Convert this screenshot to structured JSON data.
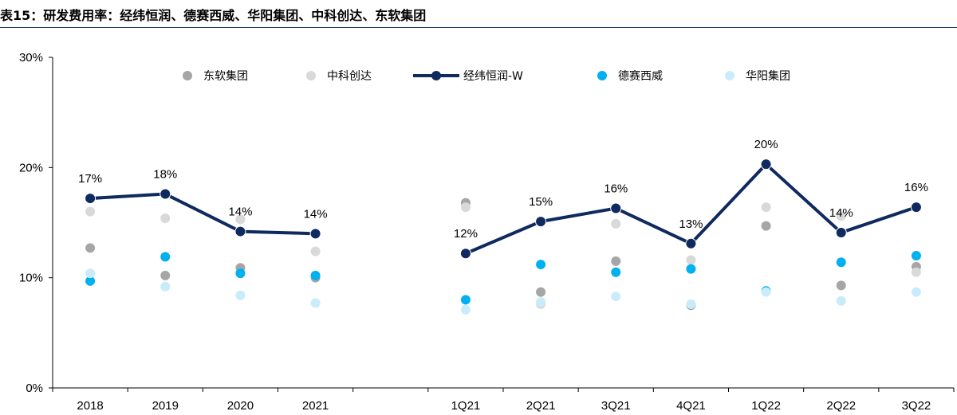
{
  "chart_data": {
    "type": "line",
    "title": "表15：研发费用率：经纬恒润、德赛西威、华阳集团、中科创达、东软集团",
    "categories": [
      "2018",
      "2019",
      "2020",
      "2021",
      "",
      "1Q21",
      "2Q21",
      "3Q21",
      "4Q21",
      "1Q22",
      "2Q22",
      "3Q22"
    ],
    "ylim": [
      0,
      30
    ],
    "yticks": [
      0,
      10,
      20,
      30
    ],
    "ytick_labels": [
      "0%",
      "10%",
      "20%",
      "30%"
    ],
    "grid": false,
    "legend_position": "top",
    "series": [
      {
        "name": "东软集团",
        "kind": "scatter",
        "color": "#a6a6a6",
        "values": [
          12.7,
          10.2,
          10.9,
          10.0,
          null,
          16.8,
          8.7,
          11.5,
          7.5,
          14.7,
          9.3,
          11.0
        ]
      },
      {
        "name": "中科创达",
        "kind": "scatter",
        "color": "#d9d9d9",
        "values": [
          16.0,
          15.4,
          15.3,
          12.4,
          null,
          16.4,
          7.6,
          14.9,
          11.6,
          16.4,
          15.6,
          10.5
        ]
      },
      {
        "name": "经纬恒润-W",
        "kind": "line",
        "color": "#0f2a5e",
        "values": [
          17.2,
          17.6,
          14.2,
          14.0,
          null,
          12.2,
          15.1,
          16.3,
          13.1,
          20.3,
          14.1,
          16.4
        ],
        "labels": [
          "17%",
          "18%",
          "14%",
          "14%",
          "",
          "12%",
          "15%",
          "16%",
          "13%",
          "20%",
          "14%",
          "16%"
        ]
      },
      {
        "name": "德赛西威",
        "kind": "scatter",
        "color": "#00b0f0",
        "values": [
          9.7,
          11.9,
          10.4,
          10.2,
          null,
          8.0,
          11.2,
          10.5,
          10.8,
          8.8,
          11.4,
          12.0
        ]
      },
      {
        "name": "华阳集团",
        "kind": "scatter",
        "color": "#c9ecfa",
        "values": [
          10.4,
          9.2,
          8.4,
          7.7,
          null,
          7.1,
          7.8,
          8.3,
          7.6,
          8.7,
          7.9,
          8.7
        ]
      }
    ]
  }
}
